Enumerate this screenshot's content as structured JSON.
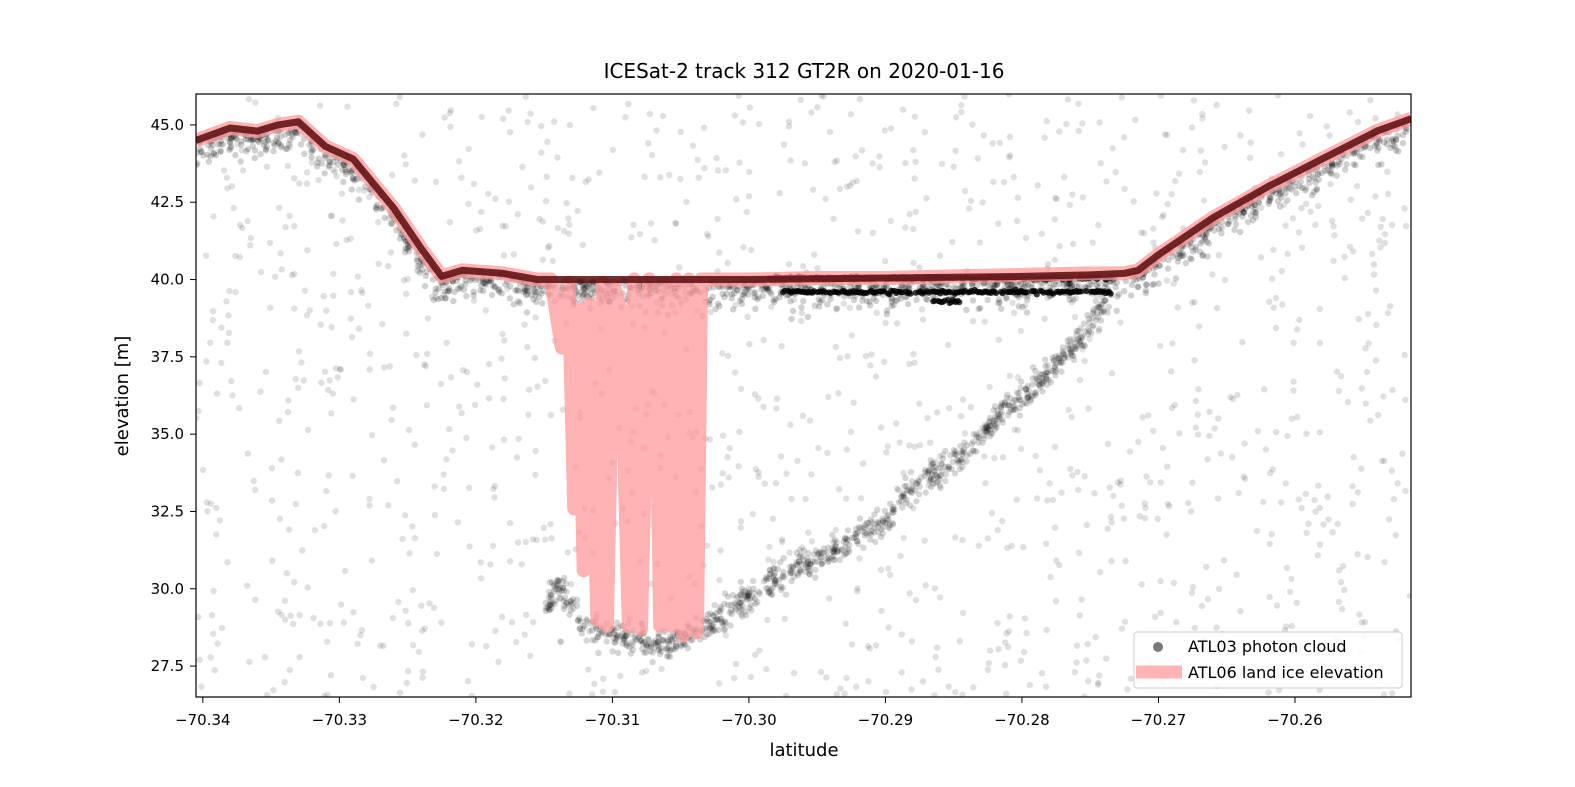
{
  "chart_data": {
    "type": "scatter",
    "title": "ICESat-2 track 312 GT2R on 2020-01-16",
    "xlabel": "latitude",
    "ylabel": "elevation [m]",
    "xlim": [
      -70.3405,
      -70.2515
    ],
    "ylim": [
      26.5,
      46.0
    ],
    "xticks": [
      -70.34,
      -70.33,
      -70.32,
      -70.31,
      -70.3,
      -70.29,
      -70.28,
      -70.27,
      -70.26
    ],
    "xtick_labels": [
      "−70.34",
      "−70.33",
      "−70.32",
      "−70.31",
      "−70.30",
      "−70.29",
      "−70.28",
      "−70.27",
      "−70.26"
    ],
    "yticks": [
      27.5,
      30.0,
      32.5,
      35.0,
      37.5,
      40.0,
      42.5,
      45.0
    ],
    "ytick_labels": [
      "27.5",
      "30.0",
      "32.5",
      "35.0",
      "37.5",
      "40.0",
      "42.5",
      "45.0"
    ],
    "grid": false,
    "legend_position": "lower-right",
    "series": [
      {
        "name": "ATL03 photon cloud",
        "kind": "scatter",
        "color": "#000000",
        "opacity": 0.12,
        "surface_profile": {
          "x": [
            -70.3405,
            -70.338,
            -70.336,
            -70.3345,
            -70.333,
            -70.331,
            -70.329,
            -70.326,
            -70.324,
            -70.3225,
            -70.321,
            -70.318,
            -70.3155,
            -70.31,
            -70.305,
            -70.3,
            -70.29,
            -70.28,
            -70.275,
            -70.2725,
            -70.2715,
            -70.27,
            -70.266,
            -70.262,
            -70.258,
            -70.254,
            -70.2515
          ],
          "y": [
            44.5,
            44.9,
            44.8,
            45.0,
            45.1,
            44.3,
            43.9,
            42.3,
            41.0,
            40.1,
            40.3,
            40.2,
            40.0,
            40.0,
            40.0,
            40.0,
            40.05,
            40.1,
            40.15,
            40.2,
            40.3,
            40.8,
            42.0,
            43.0,
            43.9,
            44.8,
            45.2
          ]
        },
        "bed_profile": {
          "x": [
            -70.315,
            -70.3145,
            -70.314,
            -70.3135,
            -70.313,
            -70.3125,
            -70.312,
            -70.311,
            -70.309,
            -70.307,
            -70.305,
            -70.303,
            -70.3,
            -70.297,
            -70.294,
            -70.29,
            -70.288,
            -70.286,
            -70.284,
            -70.282,
            -70.28,
            -70.278,
            -70.276,
            -70.2745,
            -70.2735
          ],
          "y": [
            29.5,
            29.8,
            30.0,
            29.8,
            29.5,
            29.0,
            28.8,
            28.6,
            28.4,
            28.2,
            28.3,
            28.8,
            29.8,
            30.5,
            31.2,
            32.3,
            33.3,
            33.8,
            34.5,
            35.5,
            36.2,
            37.0,
            38.0,
            38.8,
            39.5
          ]
        },
        "subsurface_layers": [
          {
            "x_start": -70.2985,
            "x_end": -70.2735,
            "y": 40.05
          },
          {
            "x_start": -70.2975,
            "x_end": -70.2735,
            "y": 39.6
          },
          {
            "x_start": -70.2865,
            "x_end": -70.2845,
            "y": 39.3
          }
        ]
      },
      {
        "name": "ATL06 land ice elevation",
        "kind": "line",
        "color": "#ff9999",
        "x": [
          -70.3405,
          -70.338,
          -70.336,
          -70.3345,
          -70.333,
          -70.331,
          -70.329,
          -70.326,
          -70.324,
          -70.3225,
          -70.321,
          -70.318,
          -70.3155,
          -70.3145,
          -70.3137,
          -70.3132,
          -70.3128,
          -70.3125,
          -70.3121,
          -70.3117,
          -70.3111,
          -70.3107,
          -70.3104,
          -70.3099,
          -70.3094,
          -70.3088,
          -70.3084,
          -70.3079,
          -70.3073,
          -70.3069,
          -70.3065,
          -70.3061,
          -70.3057,
          -70.3053,
          -70.3048,
          -70.3044,
          -70.3041,
          -70.3038,
          -70.3035,
          -70.3,
          -70.295,
          -70.29,
          -70.285,
          -70.28,
          -70.275,
          -70.2725,
          -70.2715,
          -70.27,
          -70.266,
          -70.262,
          -70.258,
          -70.254,
          -70.2515
        ],
        "y": [
          44.5,
          44.9,
          44.8,
          45.0,
          45.1,
          44.3,
          43.9,
          42.3,
          41.0,
          40.1,
          40.3,
          40.2,
          40.0,
          40.0,
          37.8,
          39.9,
          32.6,
          39.0,
          30.6,
          39.2,
          29.0,
          39.9,
          28.8,
          39.8,
          39.0,
          28.8,
          40.0,
          28.7,
          40.0,
          39.8,
          28.8,
          39.9,
          28.8,
          40.0,
          28.5,
          40.0,
          39.8,
          28.6,
          40.0,
          40.0,
          40.05,
          40.05,
          40.1,
          40.15,
          40.2,
          40.2,
          40.3,
          40.8,
          42.0,
          43.0,
          43.9,
          44.8,
          45.2
        ]
      }
    ]
  }
}
